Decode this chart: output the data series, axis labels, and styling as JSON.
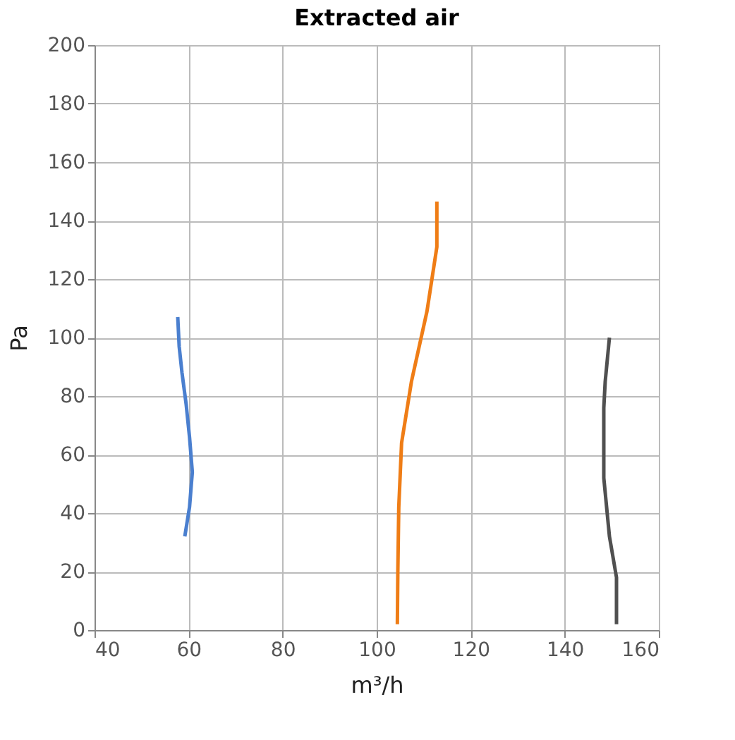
{
  "chart_data": {
    "type": "line",
    "title": "Extracted air",
    "xlabel": "m³/h",
    "ylabel": "Pa",
    "xlim": [
      40,
      160
    ],
    "xticks": [
      40,
      60,
      80,
      100,
      120,
      140,
      160
    ],
    "ylim": [
      0,
      200
    ],
    "yticks": [
      0,
      20,
      40,
      60,
      80,
      100,
      120,
      140,
      160,
      180,
      200
    ],
    "grid": true,
    "legend": false,
    "marker": "none",
    "line_style": "solid",
    "series": [
      {
        "color": "#4a7fcf",
        "x": [
          57.7,
          58.0,
          58.6,
          59.5,
          60.2,
          60.8,
          60.2,
          59.2
        ],
        "values": [
          107,
          97,
          88,
          77,
          66,
          54,
          42,
          32
        ]
      },
      {
        "color": "#ef7d16",
        "x": [
          112.8,
          112.8,
          110.7,
          107.4,
          105.3,
          104.7,
          104.5,
          104.4
        ],
        "values": [
          146.5,
          131,
          109,
          85,
          64,
          42,
          20,
          2
        ]
      },
      {
        "color": "#505050",
        "x": [
          149.5,
          148.6,
          148.3,
          148.3,
          149.5,
          151,
          151
        ],
        "values": [
          100,
          85,
          76,
          52,
          32,
          18,
          2
        ]
      }
    ]
  }
}
